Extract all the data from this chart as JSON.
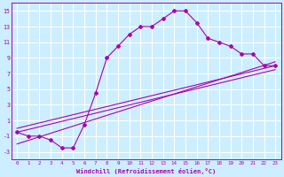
{
  "xlabel": "Windchill (Refroidissement éolien,°C)",
  "background_color": "#cceeff",
  "grid_color": "#ffffff",
  "line_color": "#aa00aa",
  "xlim": [
    -0.5,
    23.5
  ],
  "ylim": [
    -4,
    16
  ],
  "xticks": [
    0,
    1,
    2,
    3,
    4,
    5,
    6,
    7,
    8,
    9,
    10,
    11,
    12,
    13,
    14,
    15,
    16,
    17,
    18,
    19,
    20,
    21,
    22,
    23
  ],
  "yticks": [
    -3,
    -1,
    1,
    3,
    5,
    7,
    9,
    11,
    13,
    15
  ],
  "curve_main_x": [
    0,
    1,
    2,
    3,
    4,
    5,
    6,
    7,
    8,
    9,
    10,
    11,
    12,
    13,
    14,
    15,
    16,
    17,
    18,
    19,
    20,
    21,
    22,
    23
  ],
  "curve_main_y": [
    -0.5,
    -1,
    -1,
    -1.5,
    -2.5,
    -2.5,
    0.5,
    4.5,
    9,
    10.5,
    12,
    13,
    13,
    14,
    15,
    15,
    13.5,
    11.5,
    11,
    10.5,
    9.5,
    9.5,
    8,
    8
  ],
  "line1_x": [
    0,
    23
  ],
  "line1_y": [
    0,
    8
  ],
  "line2_x": [
    0,
    23
  ],
  "line2_y": [
    -0.5,
    7.5
  ],
  "line3_x": [
    0,
    23
  ],
  "line3_y": [
    -2,
    8.5
  ]
}
